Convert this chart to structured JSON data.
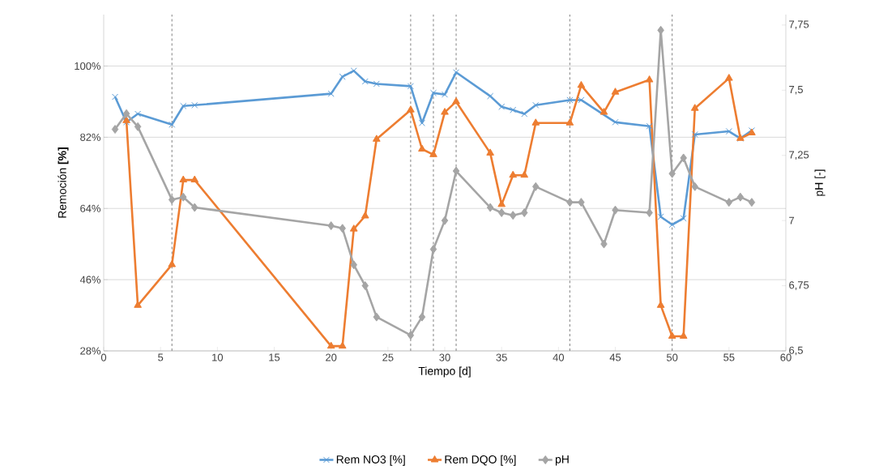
{
  "chart_data": {
    "type": "line",
    "xlabel": "Tiempo [d]",
    "ylabel": "Remoción **[%]**",
    "y2label": "pH [-]",
    "xlim": [
      0,
      60
    ],
    "xticks": [
      0,
      5,
      10,
      15,
      20,
      25,
      30,
      35,
      40,
      45,
      50,
      55,
      60
    ],
    "ylim": [
      28,
      113
    ],
    "yticks": [
      {
        "value": 28,
        "label": "28%"
      },
      {
        "value": 46,
        "label": "46%"
      },
      {
        "value": 64,
        "label": "64%"
      },
      {
        "value": 82,
        "label": "82%"
      },
      {
        "value": 100,
        "label": "100%"
      }
    ],
    "y2lim": [
      6.5,
      7.79
    ],
    "y2ticks": [
      {
        "value": 6.5,
        "label": "6,5"
      },
      {
        "value": 6.75,
        "label": "6,75"
      },
      {
        "value": 7,
        "label": "7"
      },
      {
        "value": 7.25,
        "label": "7,25"
      },
      {
        "value": 7.5,
        "label": "7,5"
      },
      {
        "value": 7.75,
        "label": "7,75"
      }
    ],
    "grid": "y",
    "legend": "bottom",
    "line_style": "solid",
    "series": [
      {
        "name": "Rem NO3 [%]",
        "color": "#5b9bd5",
        "marker": "cross",
        "x": [
          1,
          2,
          3,
          6,
          7,
          8,
          20,
          21,
          22,
          23,
          24,
          27,
          28,
          29,
          30,
          31,
          34,
          35,
          36,
          37,
          38,
          41,
          42,
          45,
          48,
          49,
          50,
          51,
          52,
          55,
          56,
          57
        ],
        "values": [
          92.2,
          85.8,
          87.9,
          85.2,
          89.9,
          90.1,
          93.0,
          97.3,
          98.8,
          96.1,
          95.5,
          94.9,
          85.6,
          93.2,
          92.8,
          98.4,
          92.4,
          89.7,
          88.9,
          87.9,
          90.1,
          91.4,
          91.4,
          85.8,
          84.8,
          61.9,
          59.9,
          61.5,
          82.7,
          83.5,
          81.7,
          83.7
        ]
      },
      {
        "name": "Rem DQO [%]",
        "color": "#ed7d31",
        "marker": "triangle",
        "x": [
          2,
          3,
          6,
          7,
          8,
          20,
          21,
          22,
          23,
          24,
          27,
          28,
          29,
          30,
          31,
          34,
          35,
          36,
          37,
          38,
          41,
          42,
          44,
          45,
          48,
          49,
          50,
          51,
          52,
          55,
          56,
          57
        ],
        "values": [
          86.2,
          39.5,
          49.8,
          71.2,
          71.2,
          29.2,
          29.2,
          58.8,
          62.1,
          81.5,
          88.9,
          79.0,
          77.6,
          88.3,
          91.0,
          78.0,
          65.0,
          72.4,
          72.4,
          85.6,
          85.6,
          95.1,
          88.3,
          93.4,
          96.5,
          39.5,
          31.7,
          31.7,
          89.3,
          96.9,
          81.7,
          83.1
        ]
      },
      {
        "name": "pH",
        "color": "#a5a5a5",
        "marker": "diamond",
        "axis": "y2",
        "x": [
          1,
          2,
          3,
          6,
          7,
          8,
          20,
          21,
          22,
          23,
          24,
          27,
          28,
          29,
          30,
          31,
          34,
          35,
          36,
          37,
          38,
          41,
          42,
          44,
          45,
          48,
          49,
          50,
          51,
          52,
          55,
          56,
          57
        ],
        "values": [
          7.35,
          7.41,
          7.36,
          7.08,
          7.09,
          7.05,
          6.98,
          6.97,
          6.83,
          6.75,
          6.63,
          6.56,
          6.63,
          6.89,
          7.0,
          7.19,
          7.05,
          7.03,
          7.02,
          7.03,
          7.13,
          7.07,
          7.07,
          6.91,
          7.04,
          7.03,
          7.73,
          7.18,
          7.24,
          7.13,
          7.07,
          7.09,
          7.07
        ]
      }
    ],
    "ref_lines": [
      {
        "axis": "x",
        "value": 6,
        "color": "#808080",
        "line_style": "dashed"
      },
      {
        "axis": "x",
        "value": 27,
        "color": "#808080",
        "line_style": "dashed"
      },
      {
        "axis": "x",
        "value": 29,
        "color": "#808080",
        "line_style": "dashed"
      },
      {
        "axis": "x",
        "value": 31,
        "color": "#808080",
        "line_style": "dashed"
      },
      {
        "axis": "x",
        "value": 41,
        "color": "#808080",
        "line_style": "dashed"
      },
      {
        "axis": "x",
        "value": 50,
        "color": "#808080",
        "line_style": "dashed"
      }
    ]
  }
}
